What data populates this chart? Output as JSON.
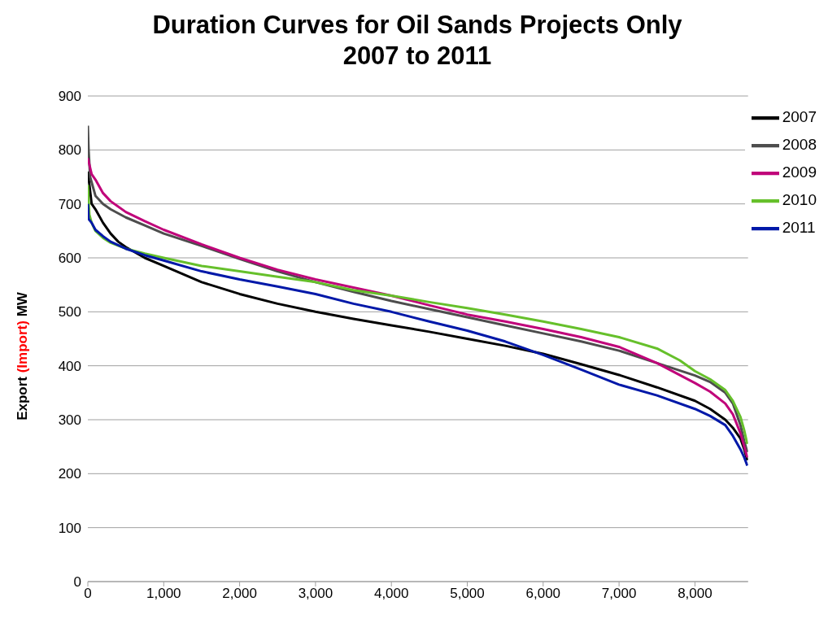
{
  "chart_data": {
    "type": "line",
    "title": "Duration Curves for Oil Sands Projects Only",
    "subtitle": "2007 to 2011",
    "ylabel": "Export (Import) MW",
    "xlim": [
      0,
      8700
    ],
    "xticks": [
      0,
      {
        "value": 1000,
        "label": "1,000"
      },
      {
        "value": 2000,
        "label": "2,000"
      },
      {
        "value": 3000,
        "label": "3,000"
      },
      {
        "value": 4000,
        "label": "4,000"
      },
      {
        "value": 5000,
        "label": "5,000"
      },
      {
        "value": 6000,
        "label": "6,000"
      },
      {
        "value": 7000,
        "label": "7,000"
      },
      {
        "value": 8000,
        "label": "8,000"
      }
    ],
    "ylim": [
      0,
      900
    ],
    "yticks": [
      0,
      100,
      200,
      300,
      400,
      500,
      600,
      700,
      800,
      900
    ],
    "grid": "y",
    "legend": "top right",
    "series": [
      {
        "name": "2007",
        "color": "#000000",
        "x": [
          0,
          50,
          100,
          200,
          300,
          400,
          500,
          750,
          1000,
          1500,
          2000,
          2500,
          3000,
          3500,
          4000,
          4500,
          5000,
          5500,
          6000,
          6500,
          7000,
          7500,
          8000,
          8200,
          8400,
          8500,
          8600,
          8650,
          8690
        ],
        "values": [
          760,
          700,
          690,
          665,
          645,
          630,
          620,
          600,
          585,
          555,
          533,
          515,
          500,
          487,
          475,
          463,
          450,
          437,
          422,
          403,
          383,
          360,
          335,
          320,
          300,
          285,
          265,
          245,
          225
        ]
      },
      {
        "name": "2008",
        "color": "#4d4d4d",
        "x": [
          0,
          10,
          30,
          100,
          200,
          300,
          500,
          750,
          1000,
          1500,
          2000,
          2500,
          3000,
          3500,
          4000,
          4500,
          5000,
          5500,
          6000,
          6500,
          7000,
          7500,
          8000,
          8200,
          8400,
          8500,
          8600,
          8650,
          8690
        ],
        "values": [
          845,
          800,
          750,
          715,
          700,
          690,
          675,
          660,
          645,
          622,
          598,
          575,
          555,
          537,
          520,
          505,
          490,
          475,
          460,
          445,
          428,
          405,
          382,
          370,
          350,
          330,
          290,
          260,
          240
        ]
      },
      {
        "name": "2009",
        "color": "#c0047a",
        "x": [
          0,
          50,
          100,
          200,
          300,
          500,
          750,
          1000,
          1500,
          2000,
          2500,
          3000,
          3500,
          4000,
          4500,
          5000,
          5500,
          6000,
          6500,
          7000,
          7500,
          8000,
          8200,
          8400,
          8500,
          8600,
          8650,
          8690
        ],
        "values": [
          785,
          755,
          745,
          720,
          705,
          685,
          668,
          652,
          625,
          600,
          578,
          560,
          545,
          530,
          512,
          495,
          482,
          468,
          453,
          435,
          405,
          368,
          352,
          330,
          310,
          275,
          250,
          230
        ]
      },
      {
        "name": "2010",
        "color": "#66c02b",
        "x": [
          0,
          20,
          50,
          100,
          200,
          300,
          500,
          750,
          1000,
          1500,
          2000,
          2500,
          3000,
          3500,
          4000,
          4500,
          5000,
          5500,
          6000,
          6500,
          7000,
          7500,
          7800,
          8000,
          8200,
          8400,
          8500,
          8600,
          8650,
          8690
        ],
        "values": [
          735,
          680,
          665,
          650,
          637,
          628,
          617,
          608,
          600,
          585,
          575,
          565,
          555,
          540,
          530,
          518,
          507,
          495,
          482,
          468,
          453,
          432,
          410,
          390,
          375,
          355,
          335,
          305,
          280,
          255
        ]
      },
      {
        "name": "2011",
        "color": "#0018a8",
        "x": [
          0,
          10,
          50,
          100,
          200,
          300,
          500,
          750,
          1000,
          1500,
          2000,
          2500,
          3000,
          3500,
          4000,
          4500,
          5000,
          5500,
          6000,
          6500,
          7000,
          7500,
          8000,
          8200,
          8400,
          8500,
          8600,
          8650,
          8690
        ],
        "values": [
          700,
          672,
          665,
          652,
          640,
          630,
          617,
          605,
          595,
          575,
          560,
          547,
          533,
          515,
          500,
          482,
          465,
          445,
          420,
          393,
          365,
          345,
          320,
          307,
          290,
          270,
          245,
          230,
          215
        ]
      }
    ]
  }
}
